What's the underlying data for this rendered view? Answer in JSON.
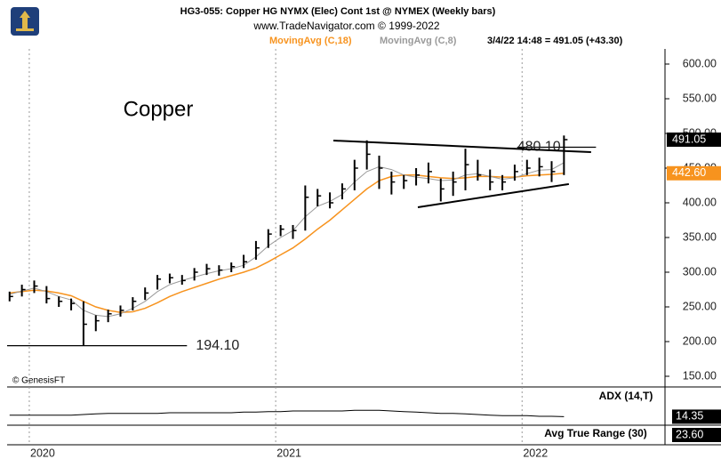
{
  "chart_data": {
    "type": "ohlc",
    "title": "HG3-055:  Copper HG NYMX (Elec) Cont 1st @ NYMEX  (Weekly bars)",
    "subtitle": "www.TradeNavigator.com © 1999-2022",
    "quote": "3/4/22 14:48 = 491.05 (+43.30)",
    "label": "Copper",
    "source": "© GenesisFT",
    "xlim": [
      2019.91,
      2022.58
    ],
    "xticks": [
      2020,
      2021,
      2022
    ],
    "ylim": [
      150,
      600
    ],
    "yticks": [
      {
        "value": 150,
        "label": "150.00"
      },
      {
        "value": 200,
        "label": "200.00"
      },
      {
        "value": 250,
        "label": "250.00"
      },
      {
        "value": 300,
        "label": "300.00"
      },
      {
        "value": 350,
        "label": "350.00"
      },
      {
        "value": 400,
        "label": "400.00"
      },
      {
        "value": 450,
        "label": "450.00"
      },
      {
        "value": 500,
        "label": "500.00"
      },
      {
        "value": 550,
        "label": "550.00"
      },
      {
        "value": 600,
        "label": "600.00"
      }
    ],
    "x": [
      2019.92,
      2019.97,
      2020.02,
      2020.07,
      2020.12,
      2020.17,
      2020.22,
      2020.27,
      2020.32,
      2020.37,
      2020.42,
      2020.47,
      2020.52,
      2020.57,
      2020.62,
      2020.67,
      2020.72,
      2020.77,
      2020.82,
      2020.87,
      2020.92,
      2020.97,
      2021.02,
      2021.07,
      2021.12,
      2021.17,
      2021.22,
      2021.27,
      2021.32,
      2021.37,
      2021.42,
      2021.47,
      2021.52,
      2021.57,
      2021.62,
      2021.67,
      2021.72,
      2021.77,
      2021.82,
      2021.87,
      2021.92,
      2021.97,
      2022.02,
      2022.07,
      2022.12,
      2022.17
    ],
    "high": [
      272,
      282,
      288,
      280,
      265,
      262,
      258,
      238,
      246,
      252,
      264,
      278,
      296,
      298,
      296,
      306,
      312,
      310,
      314,
      325,
      345,
      362,
      368,
      368,
      425,
      420,
      415,
      428,
      462,
      490,
      468,
      445,
      440,
      450,
      458,
      435,
      445,
      478,
      462,
      448,
      440,
      455,
      462,
      465,
      460,
      497
    ],
    "low": [
      258,
      265,
      270,
      255,
      250,
      245,
      194.1,
      215,
      228,
      236,
      245,
      260,
      275,
      284,
      282,
      288,
      296,
      295,
      300,
      306,
      318,
      335,
      352,
      348,
      360,
      395,
      392,
      405,
      418,
      448,
      420,
      412,
      420,
      425,
      428,
      402,
      410,
      418,
      432,
      418,
      418,
      432,
      440,
      438,
      430,
      440
    ],
    "close": [
      265,
      275,
      280,
      262,
      258,
      255,
      225,
      230,
      240,
      245,
      258,
      270,
      290,
      292,
      288,
      300,
      305,
      303,
      308,
      315,
      335,
      355,
      362,
      360,
      408,
      410,
      400,
      420,
      450,
      470,
      450,
      430,
      432,
      440,
      445,
      420,
      430,
      455,
      440,
      430,
      430,
      445,
      450,
      452,
      445,
      491.05
    ],
    "bar_color": "#000000",
    "series": [
      {
        "name": "MovingAvg (C,18)",
        "color": "#f7931e",
        "value_label": "442.60",
        "values": [
          270,
          272,
          274,
          273,
          270,
          266,
          258,
          250,
          245,
          242,
          243,
          248,
          256,
          265,
          272,
          278,
          284,
          290,
          295,
          300,
          306,
          315,
          325,
          335,
          348,
          362,
          375,
          390,
          405,
          420,
          432,
          438,
          440,
          440,
          438,
          436,
          435,
          436,
          438,
          438,
          437,
          437,
          439,
          440,
          441,
          442.6
        ]
      },
      {
        "name": "MovingAvg (C,8)",
        "color": "#9a9a9a",
        "values": [
          268,
          273,
          277,
          272,
          265,
          260,
          245,
          238,
          236,
          240,
          248,
          258,
          272,
          282,
          288,
          293,
          298,
          302,
          305,
          310,
          322,
          338,
          350,
          360,
          380,
          395,
          402,
          412,
          430,
          445,
          452,
          448,
          440,
          437,
          435,
          432,
          433,
          440,
          442,
          438,
          434,
          436,
          442,
          447,
          448,
          458
        ]
      }
    ],
    "levels": [
      {
        "value": 194.1,
        "label": "194.10",
        "x": [
          2019.91,
          2020.64
        ]
      },
      {
        "value": 480.1,
        "label": "480.10",
        "x": [
          2021.98,
          2022.3
        ]
      }
    ],
    "trendlines": [
      {
        "x": [
          2021.234,
          2022.28
        ],
        "y": [
          489.7,
          473
        ]
      },
      {
        "x": [
          2021.577,
          2022.19
        ],
        "y": [
          393.6,
          427
        ]
      }
    ],
    "adx": {
      "name": "ADX (14,T)",
      "ylim": [
        0,
        60
      ],
      "value_label": "14.35",
      "values": [
        17,
        17,
        17,
        17,
        17,
        17,
        18,
        19,
        20,
        20,
        20,
        20,
        20,
        21,
        21,
        21,
        21,
        21,
        21,
        22,
        22,
        23,
        23,
        24,
        24,
        24,
        24,
        24,
        25,
        25,
        25,
        24,
        23,
        22,
        21,
        20,
        20,
        19,
        18,
        17,
        16,
        16,
        16,
        15,
        15,
        14.35
      ]
    },
    "atr": {
      "name": "Avg True Range (30)",
      "value": 23.6,
      "value_label": "23.60"
    }
  }
}
